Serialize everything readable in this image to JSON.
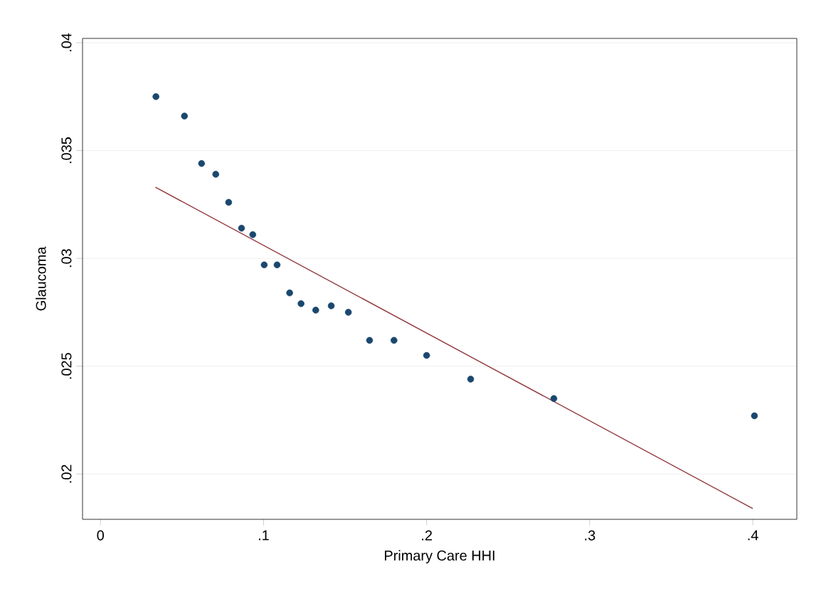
{
  "chart_data": {
    "type": "scatter",
    "xlabel": "Primary Care HHI",
    "ylabel": "Glaucoma",
    "xlim": [
      -0.011,
      0.427
    ],
    "ylim": [
      0.0179,
      0.0402
    ],
    "xticks": [
      {
        "value": 0,
        "label": "0"
      },
      {
        "value": 0.1,
        "label": ".1"
      },
      {
        "value": 0.2,
        "label": ".2"
      },
      {
        "value": 0.3,
        "label": ".3"
      },
      {
        "value": 0.4,
        "label": ".4"
      }
    ],
    "yticks": [
      {
        "value": 0.02,
        "label": ".02"
      },
      {
        "value": 0.025,
        "label": ".025"
      },
      {
        "value": 0.03,
        "label": ".03"
      },
      {
        "value": 0.035,
        "label": ".035"
      },
      {
        "value": 0.04,
        "label": ".04"
      }
    ],
    "grid": "y",
    "series": [
      {
        "marker": "circle",
        "color": "#1a476f",
        "x": [
          0.034,
          0.0515,
          0.062,
          0.0707,
          0.0786,
          0.0865,
          0.0934,
          0.1004,
          0.1083,
          0.116,
          0.123,
          0.132,
          0.1415,
          0.152,
          0.165,
          0.18,
          0.2,
          0.227,
          0.278,
          0.401
        ],
        "values": [
          0.0375,
          0.0366,
          0.0344,
          0.0339,
          0.0326,
          0.0314,
          0.0311,
          0.0297,
          0.0297,
          0.0284,
          0.0279,
          0.0276,
          0.0278,
          0.0275,
          0.0262,
          0.0262,
          0.0255,
          0.0244,
          0.0235,
          0.0227
        ]
      },
      {
        "type": "line",
        "marker": "none",
        "color": "#90353b",
        "x": [
          0.0337,
          0.4
        ],
        "values": [
          0.0333,
          0.0184
        ]
      }
    ]
  }
}
